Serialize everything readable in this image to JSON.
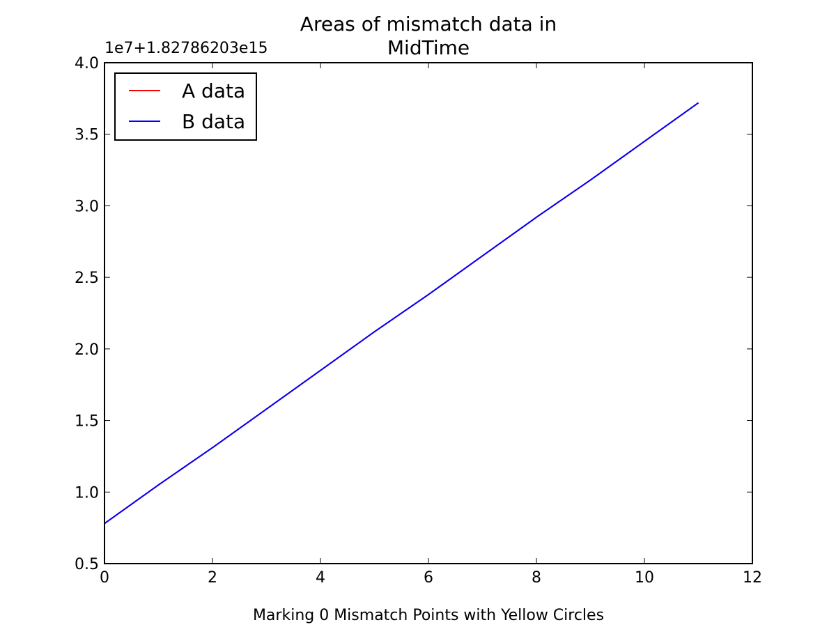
{
  "chart_data": {
    "type": "line",
    "title": "Areas of mismatch data in MidTime",
    "y_offset_label": "1e7+1.82786203e15",
    "x_label": "Marking 0 Mismatch Points with Yellow Circles",
    "x": [
      0,
      1,
      2,
      3,
      4,
      5,
      6,
      7,
      8,
      9,
      10,
      11
    ],
    "series": [
      {
        "name": "A data",
        "color": "#ff0000",
        "values": [
          0.78,
          1.05,
          1.31,
          1.58,
          1.85,
          2.12,
          2.38,
          2.65,
          2.92,
          3.18,
          3.45,
          3.72
        ]
      },
      {
        "name": "B data",
        "color": "#0000ff",
        "values": [
          0.78,
          1.05,
          1.31,
          1.58,
          1.85,
          2.12,
          2.38,
          2.65,
          2.92,
          3.18,
          3.45,
          3.72
        ]
      }
    ],
    "xlim": [
      0,
      12
    ],
    "xticks": [
      0,
      2,
      4,
      6,
      8,
      10,
      12
    ],
    "ylim": [
      0.5,
      4.0
    ],
    "yticks": [
      0.5,
      {
        "value": 1.0,
        "label": "1.0"
      },
      1.5,
      {
        "value": 2.0,
        "label": "2.0"
      },
      2.5,
      {
        "value": 3.0,
        "label": "3.0"
      },
      3.5,
      {
        "value": 4.0,
        "label": "4.0"
      }
    ],
    "legend": "upper left",
    "grid": false
  }
}
